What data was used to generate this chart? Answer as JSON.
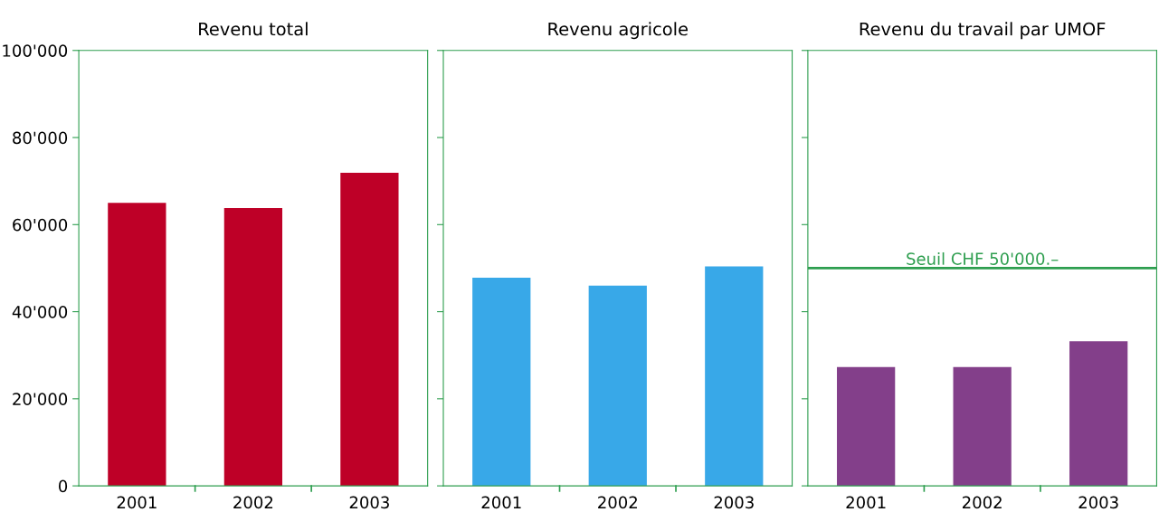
{
  "chart_data": [
    {
      "type": "bar",
      "title": "Revenu total",
      "categories": [
        "2001",
        "2002",
        "2003"
      ],
      "values": [
        65000,
        63800,
        71900
      ],
      "color": "#be0027",
      "ylim": [
        0,
        100000
      ],
      "yticks": [
        {
          "value": 0,
          "label": "0"
        },
        {
          "value": 20000,
          "label": "20'000"
        },
        {
          "value": 40000,
          "label": "40'000"
        },
        {
          "value": 60000,
          "label": "60'000"
        },
        {
          "value": 80000,
          "label": "80'000"
        },
        {
          "value": 100000,
          "label": "100'000"
        }
      ],
      "grid": false
    },
    {
      "type": "bar",
      "title": "Revenu agricole",
      "categories": [
        "2001",
        "2002",
        "2003"
      ],
      "values": [
        47800,
        46000,
        50400
      ],
      "color": "#38a8e8",
      "ylim": [
        0,
        100000
      ],
      "yticks": [
        {
          "value": 0,
          "label": null
        },
        {
          "value": 20000,
          "label": null
        },
        {
          "value": 40000,
          "label": null
        },
        {
          "value": 60000,
          "label": null
        },
        {
          "value": 80000,
          "label": null
        },
        {
          "value": 100000,
          "label": null
        }
      ],
      "tick_labels": "x",
      "grid": false
    },
    {
      "type": "bar",
      "title": "Revenu du travail par UMOF",
      "categories": [
        "2001",
        "2002",
        "2003"
      ],
      "values": [
        27300,
        27300,
        33200
      ],
      "color": "#833f8a",
      "ylim": [
        0,
        100000
      ],
      "yticks": [
        {
          "value": 0,
          "label": null
        },
        {
          "value": 20000,
          "label": null
        },
        {
          "value": 40000,
          "label": null
        },
        {
          "value": 60000,
          "label": null
        },
        {
          "value": 80000,
          "label": null
        },
        {
          "value": 100000,
          "label": null
        }
      ],
      "tick_labels": "x",
      "grid": false,
      "ref_lines": [
        {
          "axis": "y",
          "value": 50000,
          "label": "Seuil CHF 50'000.–",
          "color": "#2e9e4f"
        }
      ]
    }
  ]
}
